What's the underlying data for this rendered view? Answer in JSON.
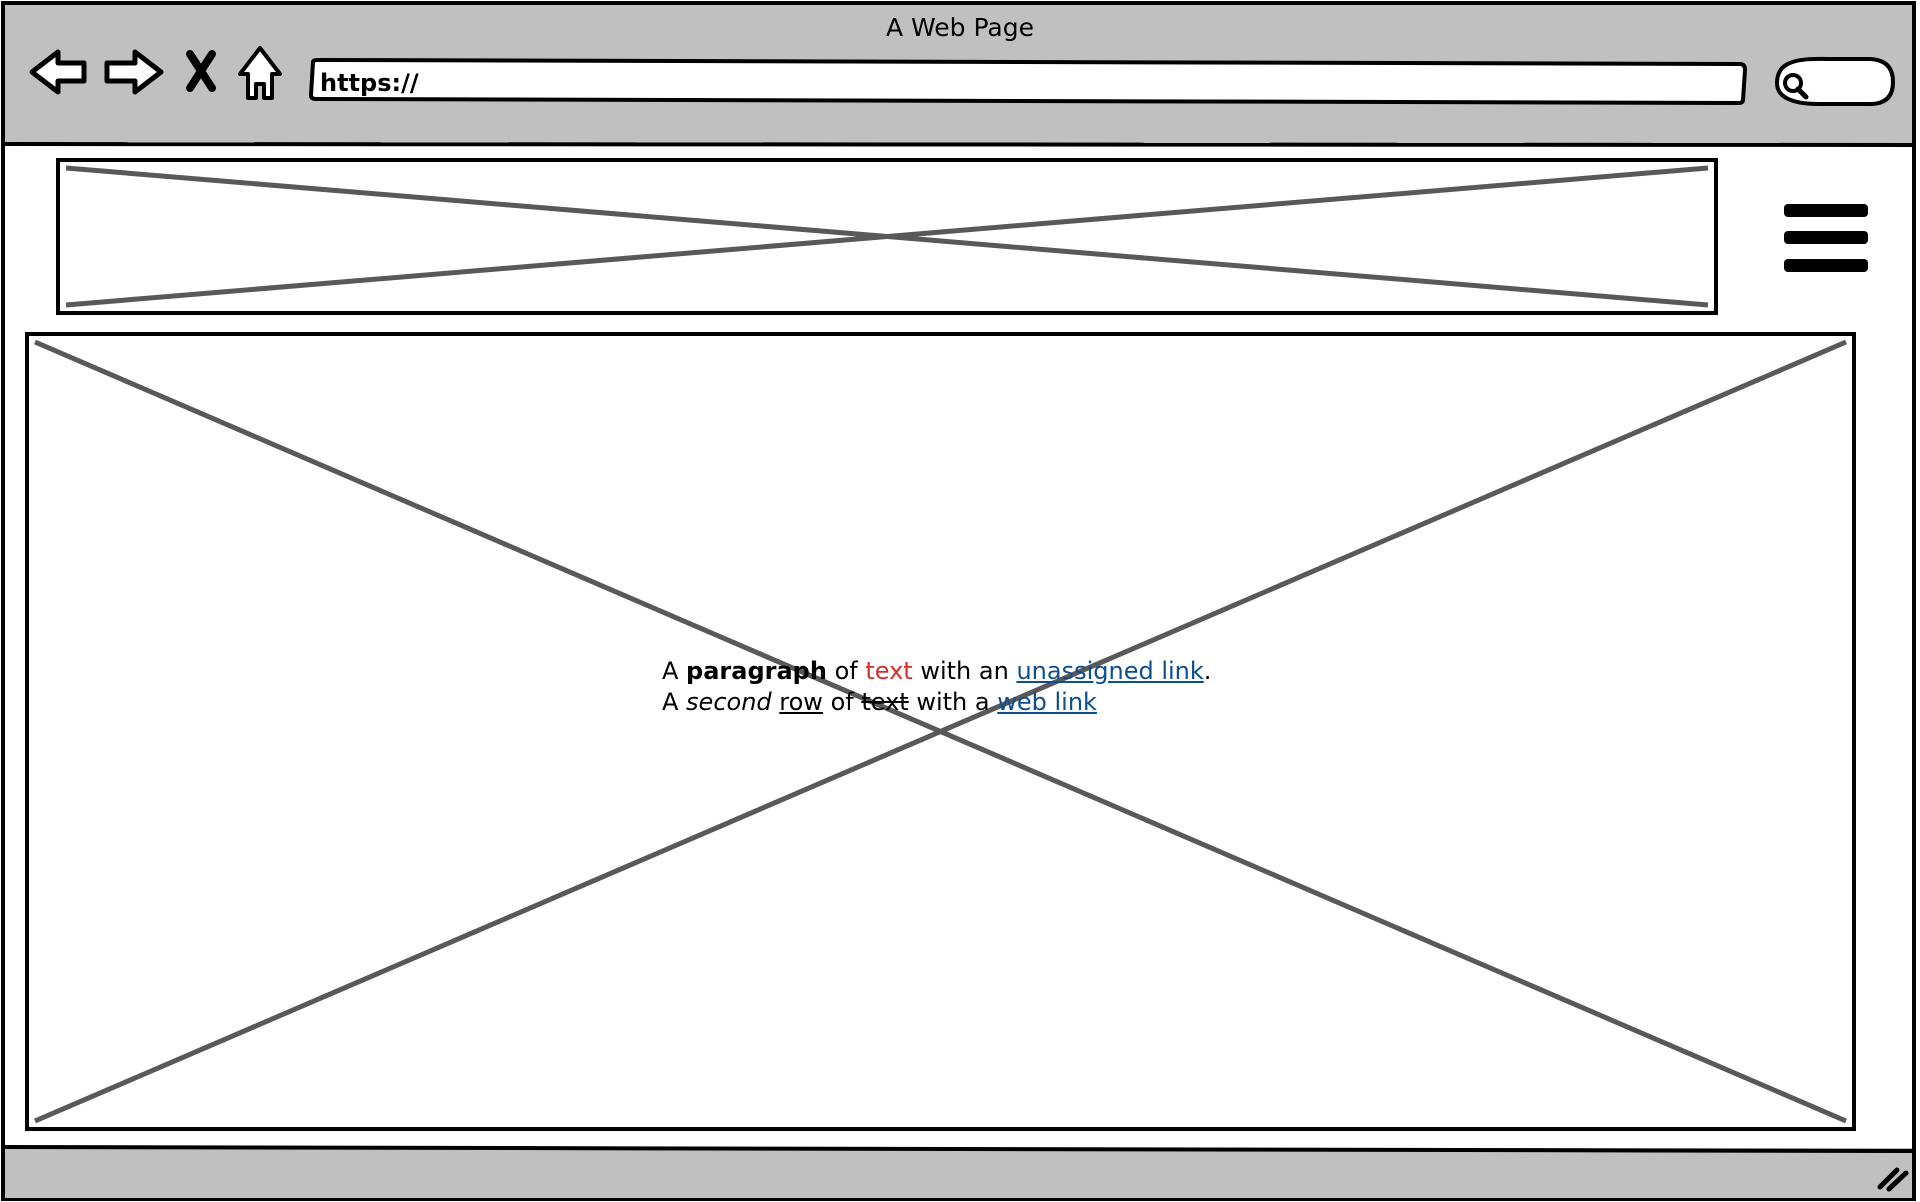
{
  "window": {
    "title": "A Web Page"
  },
  "toolbar": {
    "back_icon": "back-arrow-icon",
    "forward_icon": "forward-arrow-icon",
    "stop_icon": "close-icon",
    "home_icon": "home-icon",
    "address_value": "https://",
    "search_icon": "search-icon"
  },
  "header": {
    "menu_icon": "hamburger-menu-icon"
  },
  "main": {
    "line1": {
      "w1": "A ",
      "bold": "paragraph",
      "w2": " of ",
      "red": "text",
      "w3": " with an ",
      "link": "unassigned link",
      "w4": "."
    },
    "line2": {
      "w1": "A ",
      "italic": "second",
      "w2": " ",
      "underline": "row",
      "w3": " of ",
      "strike": "text",
      "w4": " with a ",
      "link": "web link"
    }
  },
  "colors": {
    "chrome": "#c0c0c0",
    "placeholder_stroke": "#595959",
    "red_text": "#d32f2f",
    "link": "#0d4e8f"
  }
}
